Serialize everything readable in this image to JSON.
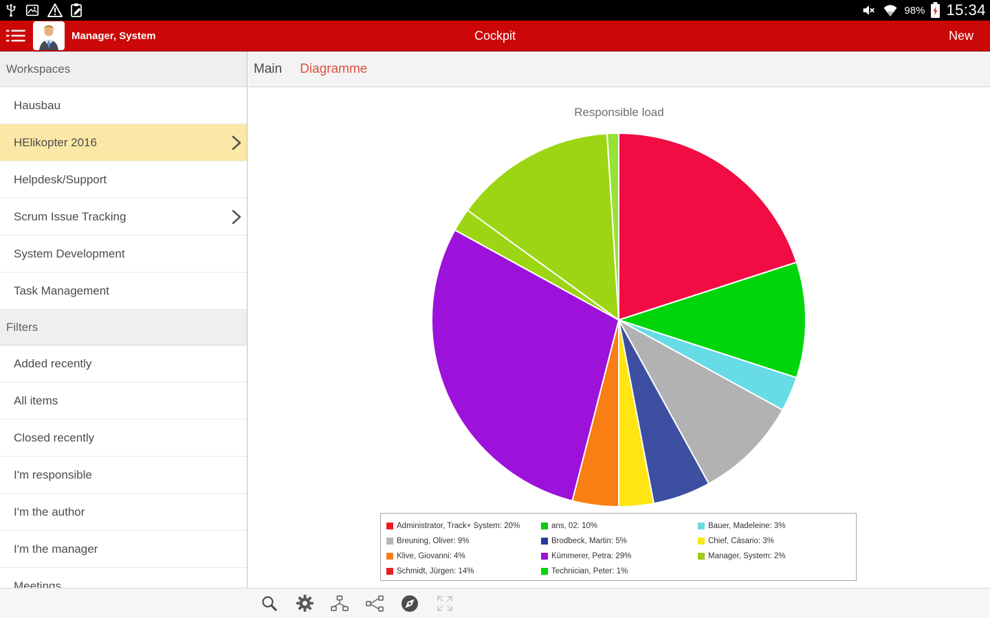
{
  "status_bar": {
    "time": "15:34",
    "battery_percent": "98%",
    "left_icons": [
      "usb-icon",
      "screenshot-icon",
      "warning-icon",
      "edit-clipboard-icon"
    ],
    "right_icons": [
      "volume-muted-icon",
      "wifi-tethering-icon"
    ],
    "battery_icon": "battery-icon"
  },
  "app_bar": {
    "user": "Manager, System",
    "title": "Cockpit",
    "action": "New"
  },
  "sidebar": {
    "sections": [
      {
        "header": "Workspaces",
        "items": [
          {
            "label": "Hausbau",
            "selected": false,
            "chevron": false
          },
          {
            "label": "HElikopter 2016",
            "selected": true,
            "chevron": true
          },
          {
            "label": "Helpdesk/Support",
            "selected": false,
            "chevron": false
          },
          {
            "label": "Scrum Issue Tracking",
            "selected": false,
            "chevron": true
          },
          {
            "label": "System Development",
            "selected": false,
            "chevron": false
          },
          {
            "label": "Task Management",
            "selected": false,
            "chevron": false
          }
        ]
      },
      {
        "header": "Filters",
        "items": [
          {
            "label": "Added recently",
            "selected": false,
            "chevron": false
          },
          {
            "label": "All items",
            "selected": false,
            "chevron": false
          },
          {
            "label": "Closed recently",
            "selected": false,
            "chevron": false
          },
          {
            "label": "I'm responsible",
            "selected": false,
            "chevron": false
          },
          {
            "label": "I'm the author",
            "selected": false,
            "chevron": false
          },
          {
            "label": "I'm the manager",
            "selected": false,
            "chevron": false
          },
          {
            "label": "Meetings",
            "selected": false,
            "chevron": false
          }
        ]
      }
    ]
  },
  "tabs": [
    {
      "label": "Main",
      "active": false
    },
    {
      "label": "Diagramme",
      "active": true
    }
  ],
  "chart_data": {
    "type": "pie",
    "title": "Responsible load",
    "unit": "percent",
    "start_angle": "top",
    "direction": "clockwise",
    "legend_position": "bottom",
    "legend_columns": 3,
    "slices": [
      {
        "label": "Administrator, Track+ System",
        "value": 20,
        "pie_color": "#F10C44",
        "legend_color": "#ED1C24",
        "legend_label": "Administrator, Track+ System: 20%"
      },
      {
        "label": "ans, 02",
        "value": 10,
        "pie_color": "#00D40A",
        "legend_color": "#0BC90B",
        "legend_label": "ans, 02: 10%"
      },
      {
        "label": "Bauer, Madeleine",
        "value": 3,
        "pie_color": "#67DBE6",
        "legend_color": "#6FD9E2",
        "legend_label": "Bauer, Madeleine: 3%"
      },
      {
        "label": "Breuning, Oliver",
        "value": 9,
        "pie_color": "#B2B2B2",
        "legend_color": "#B5B5B5",
        "legend_label": "Breuning, Oliver: 9%"
      },
      {
        "label": "Brodbeck, Martin",
        "value": 5,
        "pie_color": "#3D4FA0",
        "legend_color": "#2638A0",
        "legend_label": "Brodbeck, Martin: 5%"
      },
      {
        "label": "Chief, Cäsario",
        "value": 3,
        "pie_color": "#FFE511",
        "legend_color": "#F4E814",
        "legend_label": "Chief, Cäsario: 3%"
      },
      {
        "label": "Klive, Giovanni",
        "value": 4,
        "pie_color": "#F97E13",
        "legend_color": "#F87E1B",
        "legend_label": "Klive, Giovanni: 4%"
      },
      {
        "label": "Kümmerer, Petra",
        "value": 29,
        "pie_color": "#9C12DA",
        "legend_color": "#9C12DA",
        "legend_label": "Kümmerer, Petra: 29%"
      },
      {
        "label": "Manager, System",
        "value": 2,
        "pie_color": "#9CD513",
        "legend_color": "#9CCC1C",
        "legend_label": "Manager, System: 2%"
      },
      {
        "label": "Schmidt, Jürgen",
        "value": 14,
        "pie_color": "#9CD513",
        "legend_color": "#ED1C24",
        "legend_label": "Schmidt, Jürgen: 14%"
      },
      {
        "label": "Technician, Peter",
        "value": 1,
        "pie_color": "#97E335",
        "legend_color": "#00D40A",
        "legend_label": "Technician, Peter: 1%"
      }
    ]
  },
  "toolbar": {
    "icons": [
      {
        "name": "search-icon",
        "enabled": true
      },
      {
        "name": "settings-gear-icon",
        "enabled": true
      },
      {
        "name": "hierarchy-icon",
        "enabled": true
      },
      {
        "name": "share-icon",
        "enabled": true
      },
      {
        "name": "compass-icon",
        "enabled": true
      },
      {
        "name": "fit-screen-icon",
        "enabled": false
      }
    ]
  },
  "colors": {
    "app_bar_red": "#CB0707",
    "tab_active": "#DF5140",
    "selected_item_bg": "#FBE8A6",
    "status_bar_bg": "#000000"
  }
}
